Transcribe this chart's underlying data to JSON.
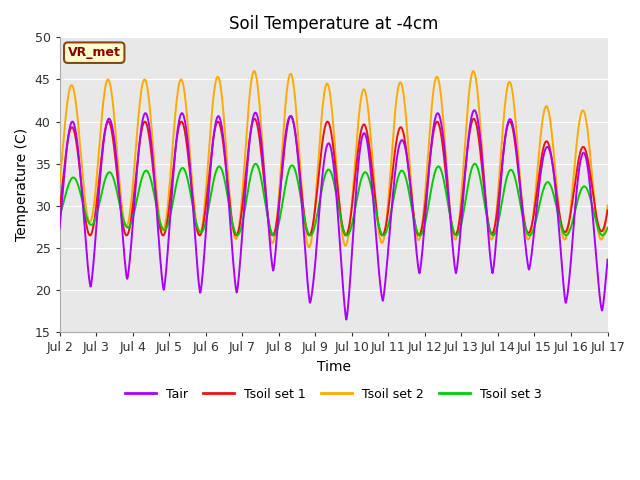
{
  "title": "Soil Temperature at -4cm",
  "xlabel": "Time",
  "ylabel": "Temperature (C)",
  "ylim": [
    15,
    50
  ],
  "xlim": [
    0,
    15
  ],
  "xtick_labels": [
    "Jul 2",
    "Jul 3",
    "Jul 4",
    "Jul 5",
    "Jul 6",
    "Jul 7",
    "Jul 8",
    "Jul 9",
    "Jul 10",
    "Jul 11",
    "Jul 12",
    "Jul 13",
    "Jul 14",
    "Jul 15",
    "Jul 16",
    "Jul 17"
  ],
  "xtick_positions": [
    0,
    1,
    2,
    3,
    4,
    5,
    6,
    7,
    8,
    9,
    10,
    11,
    12,
    13,
    14,
    15
  ],
  "ytick_positions": [
    15,
    20,
    25,
    30,
    35,
    40,
    45,
    50
  ],
  "site_label": "VR_met",
  "legend_entries": [
    "Tair",
    "Tsoil set 1",
    "Tsoil set 2",
    "Tsoil set 3"
  ],
  "colors": {
    "Tair": "#aa00ff",
    "Tsoil set 1": "#ee1111",
    "Tsoil set 2": "#ffaa00",
    "Tsoil set 3": "#00cc00"
  },
  "background_color": "#e8e8e8",
  "fig_background": "#ffffff",
  "grid_color": "#ffffff",
  "linewidth": 1.4,
  "title_fontsize": 12,
  "axis_fontsize": 10,
  "tick_fontsize": 9
}
